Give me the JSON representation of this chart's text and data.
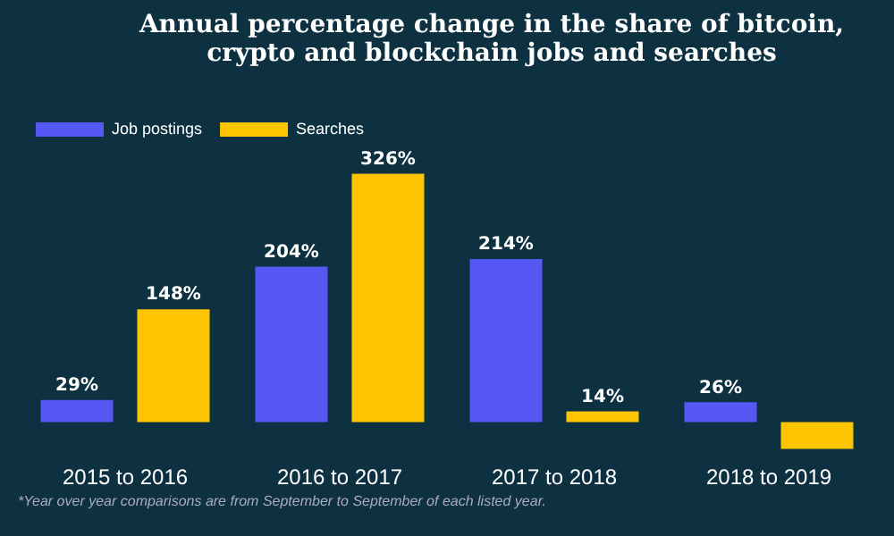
{
  "chart_data": {
    "type": "bar",
    "title": "Annual percentage change in the share of bitcoin, crypto and blockchain jobs and searches",
    "categories": [
      "2015 to 2016",
      "2016 to 2017",
      "2017 to 2018",
      "2018 to 2019"
    ],
    "series": [
      {
        "name": "Job postings",
        "color": "#5558f2",
        "values": [
          29,
          204,
          214,
          26
        ],
        "value_labels": [
          "29%",
          "204%",
          "214%",
          "26%"
        ]
      },
      {
        "name": "Searches",
        "color": "#ffc400",
        "values": [
          148,
          326,
          14,
          -35
        ],
        "value_labels": [
          "148%",
          "326%",
          "14%",
          null
        ]
      }
    ],
    "tick_labels": "x",
    "grid": false,
    "legend": "top left",
    "annotations": [
      "*Year over year comparisons are from September to September of each listed year."
    ]
  }
}
